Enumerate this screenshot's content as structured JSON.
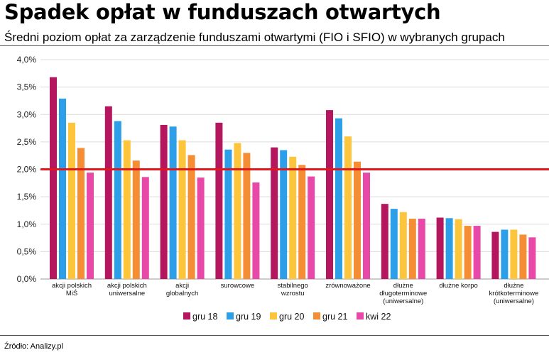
{
  "header": {
    "title": "Spadek opłat w funduszach otwartych",
    "subtitle": "Średni poziom opłat za zarządzenie funduszami otwartymi (FIO i SFIO) w wybranych grupach"
  },
  "footer": {
    "source": "Źródło: Analizy.pl"
  },
  "chart_data": {
    "type": "bar",
    "categories": [
      [
        "akcji polskich",
        "MiŚ"
      ],
      [
        "akcji polskich",
        "uniwersalne"
      ],
      [
        "akcji",
        "globalnych"
      ],
      [
        "surowcowe"
      ],
      [
        "stabilnego",
        "wzrostu"
      ],
      [
        "zrównoważone"
      ],
      [
        "dłużne",
        "długoterminowe",
        "(uniwersalne)"
      ],
      [
        "dłużne korpo"
      ],
      [
        "dłużne",
        "krótkoterminowe",
        "(uniwersalne)"
      ]
    ],
    "series": [
      {
        "name": "gru 18",
        "color": "#b5175f",
        "values": [
          3.68,
          3.15,
          2.81,
          2.85,
          2.4,
          3.08,
          1.37,
          1.12,
          0.86
        ]
      },
      {
        "name": "gru 19",
        "color": "#2c9fe8",
        "values": [
          3.29,
          2.88,
          2.78,
          2.36,
          2.35,
          2.93,
          1.28,
          1.11,
          0.9
        ]
      },
      {
        "name": "gru 20",
        "color": "#fcc53c",
        "values": [
          2.85,
          2.53,
          2.53,
          2.48,
          2.23,
          2.6,
          1.22,
          1.09,
          0.9
        ]
      },
      {
        "name": "gru 21",
        "color": "#f58d35",
        "values": [
          2.39,
          2.16,
          2.26,
          2.3,
          2.08,
          2.14,
          1.1,
          0.97,
          0.81
        ]
      },
      {
        "name": "kwi 22",
        "color": "#e849a8",
        "values": [
          1.94,
          1.86,
          1.85,
          1.76,
          1.87,
          1.94,
          1.1,
          0.97,
          0.76
        ]
      }
    ],
    "y_ticks": [
      "0,0%",
      "0,5%",
      "1,0%",
      "1,5%",
      "2,0%",
      "2,5%",
      "3,0%",
      "3,5%",
      "4,0%"
    ],
    "ylim": [
      0,
      4
    ],
    "y_step": 0.5,
    "reference_line": {
      "value": 2.0,
      "color": "#e3161b"
    },
    "grid": true,
    "legend_position": "bottom",
    "xlabel": "",
    "ylabel": ""
  }
}
